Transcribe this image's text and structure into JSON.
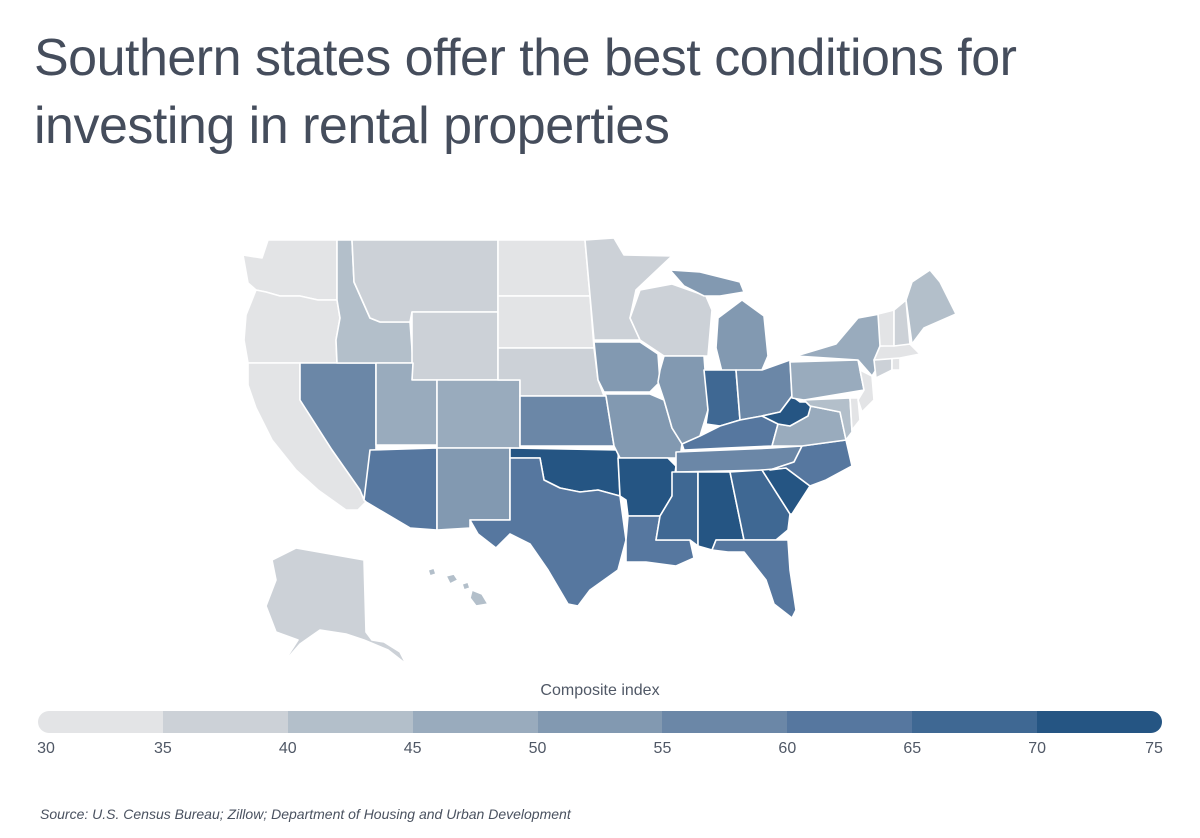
{
  "title": "Southern states offer the best conditions for investing in rental properties",
  "legend": {
    "title": "Composite index",
    "ticks": [
      "30",
      "35",
      "40",
      "45",
      "50",
      "55",
      "60",
      "65",
      "70",
      "75"
    ],
    "colors": [
      "#e3e4e6",
      "#ccd1d7",
      "#b3bfca",
      "#99abbd",
      "#8299b1",
      "#6b87a7",
      "#56779f",
      "#3f6893",
      "#255583"
    ]
  },
  "source": "Source:  U.S. Census Bureau; Zillow; Department of Housing and Urban Development",
  "map_data": {
    "type": "choropleth",
    "states": {
      "WA": 0,
      "OR": 0,
      "CA": 0,
      "ND": 0,
      "SD": 0,
      "VT": 0,
      "MA": 0,
      "RI": 0,
      "NJ": 0,
      "DE": 0,
      "MT": 1,
      "WY": 1,
      "NE": 1,
      "MN": 1,
      "WI": 1,
      "NH": 1,
      "CT": 1,
      "AK": 1,
      "ID": 2,
      "ME": 2,
      "MD": 2,
      "HI": 2,
      "UT": 3,
      "CO": 3,
      "NY": 3,
      "PA": 3,
      "VA": 3,
      "NM": 4,
      "IA": 4,
      "IL": 4,
      "MO": 4,
      "MI": 4,
      "NV": 5,
      "KS": 5,
      "OH": 5,
      "TN": 5,
      "AZ": 6,
      "TX": 6,
      "KY": 6,
      "NC": 6,
      "FL": 6,
      "LA": 6,
      "IN": 7,
      "MS": 7,
      "GA": 7,
      "OK": 8,
      "AR": 8,
      "AL": 8,
      "SC": 8,
      "WV": 8
    }
  }
}
